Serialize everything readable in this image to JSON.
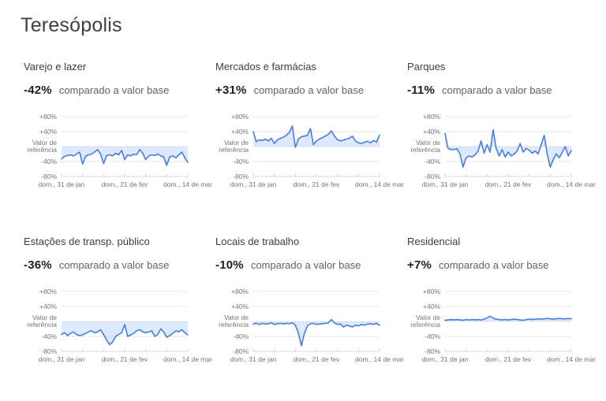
{
  "title": "Teresópolis",
  "compare_label": "comparado a valor base",
  "axis": {
    "y_labels": [
      "+80%",
      "+40%",
      "Valor de",
      "referência",
      "-40%",
      "-80%"
    ],
    "x_labels": [
      "dom., 31 de jan",
      "dom., 21 de fev",
      "dom., 14 de mar"
    ],
    "ylim": [
      -80,
      80
    ],
    "grid": true
  },
  "colors": {
    "line": "#4a7de2",
    "fill": "rgba(66,133,244,0.18)",
    "grid": "#e8e8e8",
    "axis_line": "#d6d9dd",
    "axis_text": "#757575"
  },
  "chart_data": [
    {
      "type": "line",
      "title": "Varejo e lazer",
      "delta": "-42%",
      "ylim": [
        -80,
        80
      ],
      "values": [
        -33,
        -26,
        -24,
        -22,
        -25,
        -20,
        -15,
        -47,
        -26,
        -22,
        -20,
        -15,
        -8,
        -20,
        -46,
        -24,
        -22,
        -25,
        -18,
        -22,
        -10,
        -35,
        -22,
        -25,
        -20,
        -22,
        -8,
        -18,
        -35,
        -25,
        -22,
        -24,
        -20,
        -25,
        -28,
        -50,
        -28,
        -25,
        -30,
        -22,
        -15,
        -30,
        -42
      ]
    },
    {
      "type": "line",
      "title": "Mercados e farmácias",
      "delta": "+31%",
      "ylim": [
        -80,
        80
      ],
      "values": [
        40,
        13,
        18,
        16,
        20,
        15,
        22,
        8,
        18,
        22,
        25,
        30,
        38,
        55,
        -2,
        20,
        26,
        28,
        30,
        48,
        5,
        15,
        20,
        24,
        28,
        33,
        42,
        28,
        18,
        15,
        17,
        20,
        22,
        28,
        15,
        10,
        8,
        12,
        14,
        10,
        16,
        12,
        31
      ]
    },
    {
      "type": "line",
      "title": "Parques",
      "delta": "-11%",
      "ylim": [
        -80,
        80
      ],
      "values": [
        35,
        -5,
        -8,
        -8,
        -6,
        -20,
        -55,
        -30,
        -25,
        -28,
        -22,
        -12,
        15,
        -18,
        5,
        -15,
        45,
        -5,
        -25,
        -8,
        -28,
        -15,
        -25,
        -20,
        -12,
        8,
        -15,
        -5,
        -10,
        -18,
        -12,
        -20,
        5,
        30,
        -20,
        -55,
        -35,
        -20,
        -30,
        -15,
        0,
        -25,
        -11
      ]
    },
    {
      "type": "line",
      "title": "Estações de transp. público",
      "delta": "-36%",
      "ylim": [
        -80,
        80
      ],
      "values": [
        -35,
        -30,
        -38,
        -32,
        -28,
        -35,
        -38,
        -36,
        -32,
        -28,
        -25,
        -30,
        -28,
        -22,
        -35,
        -50,
        -62,
        -55,
        -40,
        -35,
        -30,
        -8,
        -40,
        -36,
        -32,
        -25,
        -22,
        -28,
        -30,
        -28,
        -25,
        -40,
        -35,
        -20,
        -28,
        -42,
        -38,
        -32,
        -25,
        -28,
        -22,
        -30,
        -36
      ]
    },
    {
      "type": "line",
      "title": "Locais de trabalho",
      "delta": "-10%",
      "ylim": [
        -80,
        80
      ],
      "values": [
        -7,
        -5,
        -8,
        -5,
        -7,
        -6,
        -4,
        -8,
        -6,
        -5,
        -7,
        -5,
        -6,
        -4,
        -10,
        -30,
        -65,
        -32,
        -12,
        -6,
        -5,
        -8,
        -7,
        -6,
        -5,
        -4,
        5,
        -4,
        -8,
        -7,
        -15,
        -10,
        -12,
        -15,
        -10,
        -12,
        -8,
        -10,
        -7,
        -6,
        -8,
        -5,
        -10
      ]
    },
    {
      "type": "line",
      "title": "Residencial",
      "delta": "+7%",
      "ylim": [
        -80,
        80
      ],
      "values": [
        3,
        4,
        5,
        4,
        5,
        4,
        3,
        5,
        4,
        5,
        4,
        5,
        4,
        6,
        10,
        14,
        9,
        6,
        5,
        4,
        5,
        4,
        5,
        6,
        5,
        4,
        3,
        5,
        6,
        5,
        6,
        7,
        6,
        7,
        8,
        7,
        6,
        7,
        8,
        7,
        7,
        8,
        7
      ]
    }
  ]
}
